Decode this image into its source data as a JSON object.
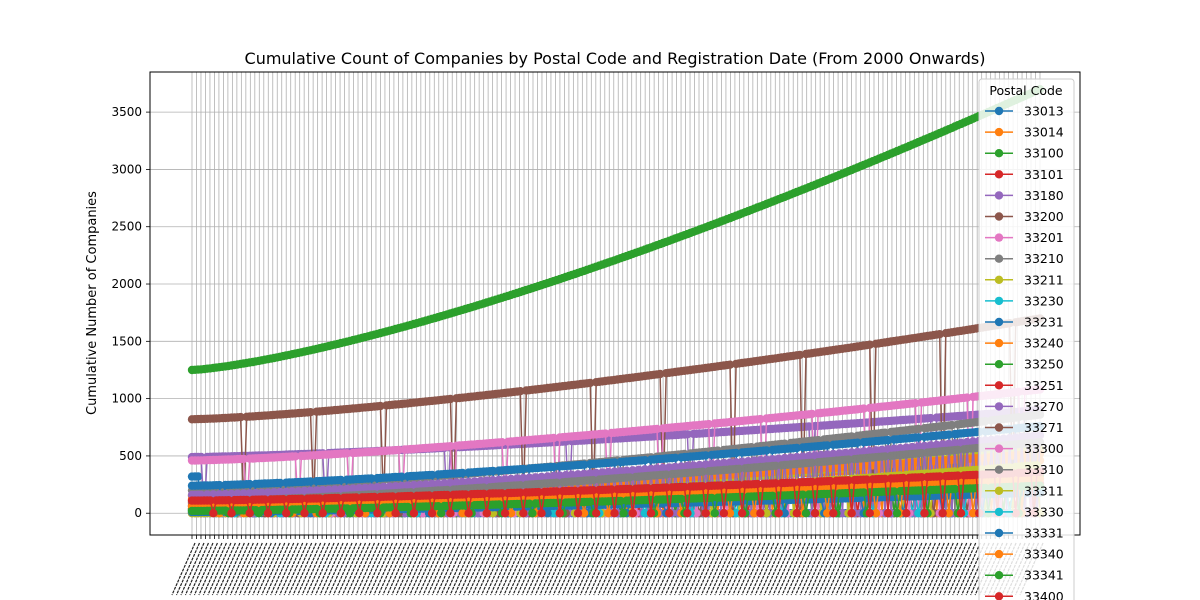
{
  "chart_data": {
    "type": "line",
    "title": "Cumulative Count of Companies by Postal Code and Registration Date (From 2000 Onwards)",
    "xlabel": "",
    "ylabel": "Cumulative Number of Companies",
    "ylim": [
      -190,
      3850
    ],
    "yticks": [
      0,
      500,
      1000,
      1500,
      2000,
      2500,
      3000,
      3500
    ],
    "grid": true,
    "legend": {
      "title": "Postal Code",
      "placement": "top-right"
    },
    "x_points": 280,
    "x_tick_labels_note": "dense rotated date labels (illegible)",
    "series": [
      {
        "name": "33013",
        "color": "#1f77b4",
        "start": 320,
        "end": 640,
        "spike_floor": 0,
        "spike_every": 7
      },
      {
        "name": "33014",
        "color": "#ff7f0e",
        "start": 150,
        "end": 460,
        "spike_floor": 0,
        "spike_every": 9
      },
      {
        "name": "33100",
        "color": "#2ca02c",
        "start": 1250,
        "end": 3700,
        "spike_floor": null,
        "spike_every": 0
      },
      {
        "name": "33101",
        "color": "#d62728",
        "start": 90,
        "end": 300,
        "spike_floor": 0,
        "spike_every": 6
      },
      {
        "name": "33180",
        "color": "#9467bd",
        "start": 490,
        "end": 900,
        "spike_floor": 0,
        "spike_every": 40
      },
      {
        "name": "33200",
        "color": "#8c564b",
        "start": 820,
        "end": 1700,
        "spike_floor": 80,
        "spike_every": 23
      },
      {
        "name": "33201",
        "color": "#e377c2",
        "start": 460,
        "end": 1080,
        "spike_floor": 0,
        "spike_every": 17
      },
      {
        "name": "33210",
        "color": "#7f7f7f",
        "start": 200,
        "end": 860,
        "spike_floor": 0,
        "spike_every": 11
      },
      {
        "name": "33211",
        "color": "#bcbd22",
        "start": 0,
        "end": 560,
        "spike_floor": 0,
        "spike_every": 8
      },
      {
        "name": "33230",
        "color": "#17becf",
        "start": 60,
        "end": 220,
        "spike_floor": 0,
        "spike_every": 12
      },
      {
        "name": "33231",
        "color": "#1f77b4",
        "start": 240,
        "end": 760,
        "spike_floor": 0,
        "spike_every": 10
      },
      {
        "name": "33240",
        "color": "#ff7f0e",
        "start": 120,
        "end": 520,
        "spike_floor": 0,
        "spike_every": 13
      },
      {
        "name": "33250",
        "color": "#2ca02c",
        "start": 40,
        "end": 330,
        "spike_floor": 0,
        "spike_every": 9
      },
      {
        "name": "33251",
        "color": "#d62728",
        "start": 70,
        "end": 260,
        "spike_floor": 0,
        "spike_every": 7
      },
      {
        "name": "33270",
        "color": "#9467bd",
        "start": 160,
        "end": 680,
        "spike_floor": 0,
        "spike_every": 14
      },
      {
        "name": "33271",
        "color": "#8c564b",
        "start": 30,
        "end": 240,
        "spike_floor": 0,
        "spike_every": 11
      },
      {
        "name": "33300",
        "color": "#e377c2",
        "start": 0,
        "end": 380,
        "spike_floor": 0,
        "spike_every": 10
      },
      {
        "name": "33310",
        "color": "#7f7f7f",
        "start": 100,
        "end": 620,
        "spike_floor": 0,
        "spike_every": 12
      },
      {
        "name": "33311",
        "color": "#bcbd22",
        "start": 0,
        "end": 420,
        "spike_floor": 0,
        "spike_every": 9
      },
      {
        "name": "33330",
        "color": "#17becf",
        "start": 20,
        "end": 200,
        "spike_floor": 0,
        "spike_every": 15
      },
      {
        "name": "33331",
        "color": "#1f77b4",
        "start": 10,
        "end": 180,
        "spike_floor": 0,
        "spike_every": 13
      },
      {
        "name": "33340",
        "color": "#ff7f0e",
        "start": 60,
        "end": 300,
        "spike_floor": 0,
        "spike_every": 8
      },
      {
        "name": "33341",
        "color": "#2ca02c",
        "start": 20,
        "end": 240,
        "spike_floor": 0,
        "spike_every": 10
      },
      {
        "name": "33400",
        "color": "#d62728",
        "start": 110,
        "end": 360,
        "spike_floor": 0,
        "spike_every": 6
      }
    ]
  }
}
